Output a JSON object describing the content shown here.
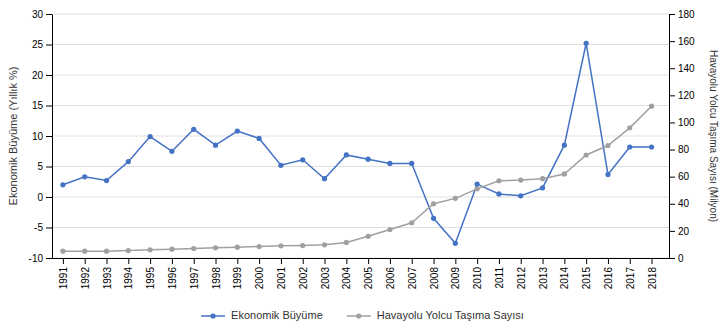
{
  "chart_data": {
    "type": "line",
    "x": [
      1991,
      1992,
      1993,
      1994,
      1995,
      1996,
      1997,
      1998,
      1999,
      2000,
      2001,
      2002,
      2003,
      2004,
      2005,
      2006,
      2007,
      2008,
      2009,
      2010,
      2011,
      2012,
      2013,
      2014,
      2015,
      2016,
      2017,
      2018
    ],
    "xlim": [
      1990.5,
      2018.8
    ],
    "xticks": [
      1991,
      1992,
      1993,
      1994,
      1995,
      1996,
      1997,
      1998,
      1999,
      2000,
      2001,
      2002,
      2003,
      2004,
      2005,
      2006,
      2007,
      2008,
      2009,
      2010,
      2011,
      2012,
      2013,
      2014,
      2015,
      2016,
      2017,
      2018
    ],
    "ylabel": "Ekonomik Büyüme (Yıllık %)",
    "y2label": "Havayolu Yolcu Taşıma Sayısı (Milyon)",
    "ylim": [
      -10,
      30
    ],
    "yticks": [
      -10,
      -5,
      0,
      5,
      10,
      15,
      20,
      25,
      30
    ],
    "y2lim": [
      0,
      180
    ],
    "y2ticks": [
      0,
      20,
      40,
      60,
      80,
      100,
      120,
      140,
      160,
      180
    ],
    "grid": true,
    "legend": "bottom",
    "series": [
      {
        "name": "Ekonomik Büyüme",
        "color": "#4472C4",
        "marker": "circle",
        "line_style": "solid",
        "values": [
          2.0,
          3.3,
          2.7,
          5.8,
          9.9,
          7.5,
          11.1,
          8.5,
          10.8,
          9.6,
          5.2,
          6.1,
          3.0,
          6.9,
          6.2,
          5.5,
          5.5,
          -3.5,
          -7.6,
          2.1,
          0.5,
          0.2,
          1.5,
          8.5,
          25.2,
          3.7,
          8.2,
          8.2
        ]
      },
      {
        "name": "Havayolu Yolcu Taşıma Sayısı",
        "color": "#A0A0A0",
        "marker": "circle",
        "line_style": "solid",
        "axis": "y2",
        "values": [
          5.0,
          5.0,
          5.0,
          5.5,
          6.0,
          6.5,
          7.0,
          7.5,
          8.0,
          8.5,
          9.0,
          9.2,
          9.7,
          11.5,
          16.0,
          21.0,
          26.0,
          40.0,
          44.0,
          51.0,
          57.0,
          57.5,
          58.5,
          62.0,
          76.0,
          83.0,
          96.0,
          112.0
        ]
      }
    ]
  }
}
